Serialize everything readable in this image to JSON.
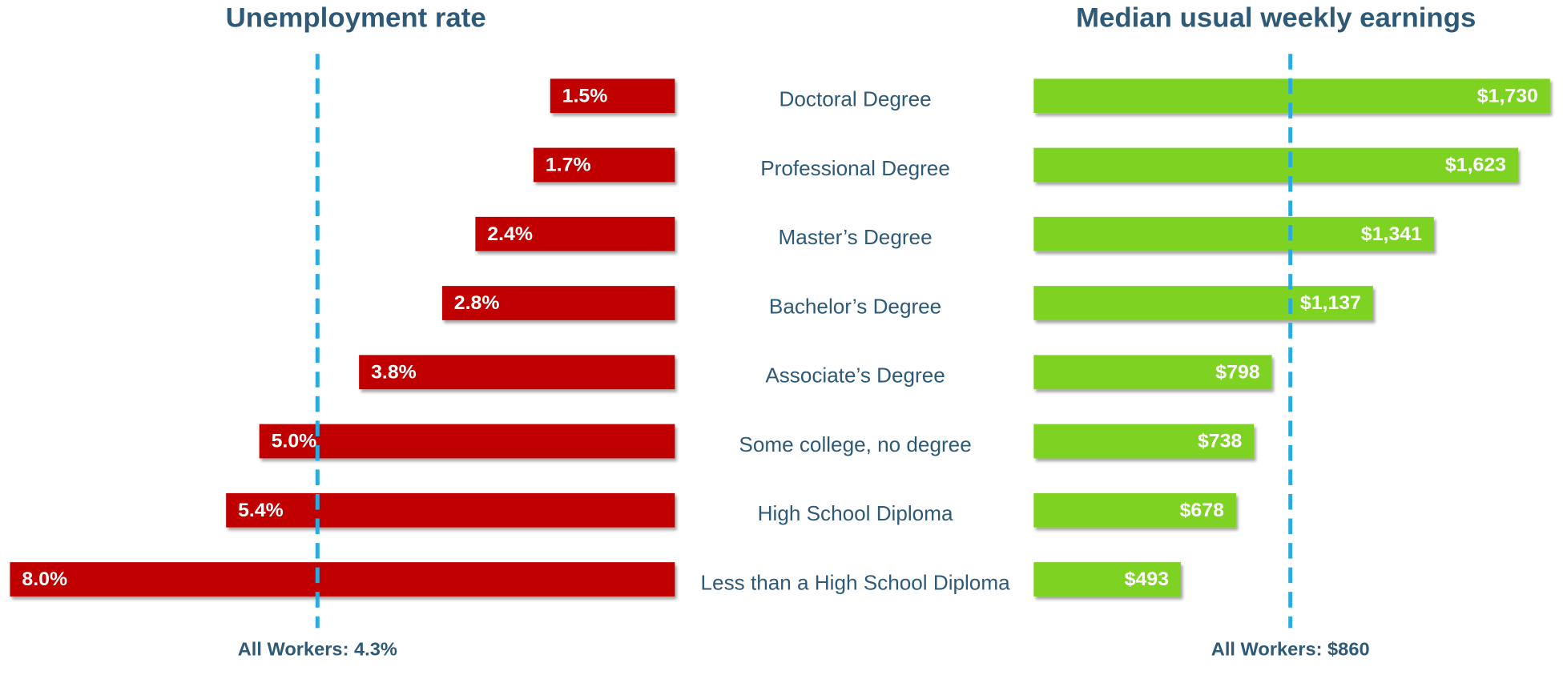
{
  "chart_data": [
    {
      "type": "bar",
      "orientation": "horizontal",
      "direction": "left",
      "title": "Unemployment rate",
      "categories": [
        "Doctoral Degree",
        "Professional Degree",
        "Master’s Degree",
        "Bachelor’s Degree",
        "Associate’s Degree",
        "Some college, no degree",
        "High School Diploma",
        "Less than a High School Diploma"
      ],
      "values": [
        1.5,
        1.7,
        2.4,
        2.8,
        3.8,
        5.0,
        5.4,
        8.0
      ],
      "value_labels": [
        "1.5%",
        "1.7%",
        "2.4%",
        "2.8%",
        "3.8%",
        "5.0%",
        "5.4%",
        "8.0%"
      ],
      "color": "#c00000",
      "xlim": [
        0,
        8.0
      ],
      "reference_line": {
        "value": 4.3,
        "label": "All Workers: 4.3%",
        "color": "#29abe2"
      }
    },
    {
      "type": "bar",
      "orientation": "horizontal",
      "direction": "right",
      "title": "Median usual weekly earnings",
      "values": [
        1730,
        1623,
        1341,
        1137,
        798,
        738,
        678,
        493
      ],
      "value_labels": [
        "$1,730",
        "$1,623",
        "$1,341",
        "$1,137",
        "$798",
        "$738",
        "$678",
        "$493"
      ],
      "color": "#7ed321",
      "xlim": [
        0,
        1730
      ],
      "reference_line": {
        "value": 860,
        "label": "All Workers: $860",
        "color": "#29abe2"
      }
    }
  ]
}
